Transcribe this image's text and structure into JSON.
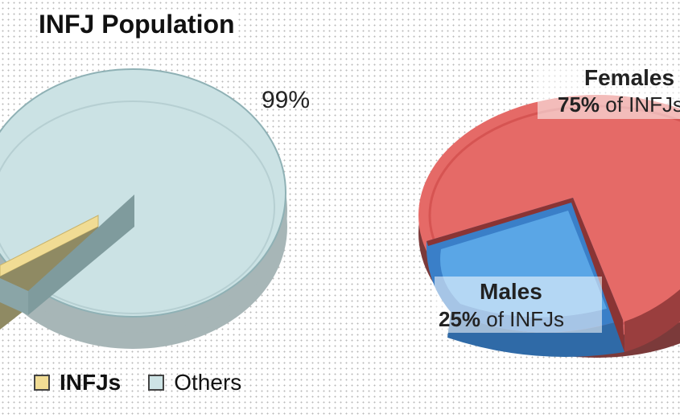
{
  "title": "INFJ Population",
  "legend": {
    "infjs": "INFJs",
    "others": "Others"
  },
  "colors": {
    "infjs": "#f1dc94",
    "others": "#cde3e5",
    "females": "#e56a67",
    "males": "#5aa6e6"
  },
  "chart_data": [
    {
      "type": "pie",
      "title": "INFJ Population",
      "slices": [
        {
          "name": "INFJs",
          "value": 1
        },
        {
          "name": "Others",
          "value": 99,
          "label": "99%"
        }
      ]
    },
    {
      "type": "pie",
      "slices": [
        {
          "name": "Females",
          "value": 75,
          "label_name": "Females",
          "label_pct": "75%",
          "label_rest": " of INFJs"
        },
        {
          "name": "Males",
          "value": 25,
          "label_name": "Males",
          "label_pct": "25%",
          "label_rest": " of INFJs"
        }
      ]
    }
  ]
}
